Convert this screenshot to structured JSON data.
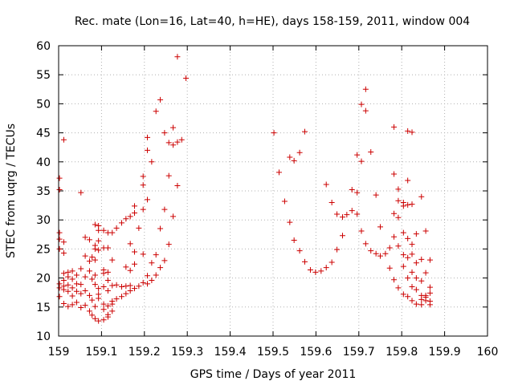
{
  "chart_data": {
    "type": "scatter",
    "title": "Rec. mate (Lon=16, Lat=40, h=HE), days 158-159, 2011, window 004",
    "xlabel": "GPS time / Days of year 2011",
    "ylabel": "STEC from uqrg / TECUs",
    "xlim": [
      159,
      160
    ],
    "ylim": [
      10,
      60
    ],
    "xticks": [
      159,
      159.1,
      159.2,
      159.3,
      159.4,
      159.5,
      159.6,
      159.7,
      159.8,
      159.9,
      160
    ],
    "xtick_labels": [
      "159",
      "159.1",
      "159.2",
      "159.3",
      "159.4",
      "159.5",
      "159.6",
      "159.7",
      "159.8",
      "159.9",
      "160"
    ],
    "yticks": [
      10,
      15,
      20,
      25,
      30,
      35,
      40,
      45,
      50,
      55,
      60
    ],
    "ytick_labels": [
      "10",
      "15",
      "20",
      "25",
      "30",
      "35",
      "40",
      "45",
      "50",
      "55",
      "60"
    ],
    "grid": true,
    "marker": "+",
    "color": "#cc0000",
    "points": [
      [
        159.002,
        37.2
      ],
      [
        159.002,
        35.2
      ],
      [
        159.002,
        27.8
      ],
      [
        159.002,
        26.7
      ],
      [
        159.002,
        25.0
      ],
      [
        159.002,
        19.0
      ],
      [
        159.002,
        18.3
      ],
      [
        159.002,
        16.8
      ],
      [
        159.012,
        43.8
      ],
      [
        159.012,
        26.2
      ],
      [
        159.012,
        24.3
      ],
      [
        159.012,
        20.8
      ],
      [
        159.012,
        19.6
      ],
      [
        159.012,
        18.6
      ],
      [
        159.012,
        18.0
      ],
      [
        159.012,
        15.6
      ],
      [
        159.022,
        21.0
      ],
      [
        159.022,
        20.2
      ],
      [
        159.022,
        18.8
      ],
      [
        159.022,
        17.7
      ],
      [
        159.022,
        15.1
      ],
      [
        159.032,
        21.2
      ],
      [
        159.032,
        19.8
      ],
      [
        159.032,
        18.3
      ],
      [
        159.032,
        16.9
      ],
      [
        159.032,
        15.4
      ],
      [
        159.042,
        20.5
      ],
      [
        159.042,
        19.0
      ],
      [
        159.042,
        17.7
      ],
      [
        159.042,
        15.8
      ],
      [
        159.052,
        34.7
      ],
      [
        159.052,
        21.6
      ],
      [
        159.052,
        18.9
      ],
      [
        159.052,
        17.3
      ],
      [
        159.052,
        14.9
      ],
      [
        159.062,
        27.0
      ],
      [
        159.062,
        23.8
      ],
      [
        159.062,
        20.2
      ],
      [
        159.062,
        17.8
      ],
      [
        159.062,
        15.3
      ],
      [
        159.072,
        26.6
      ],
      [
        159.072,
        22.9
      ],
      [
        159.072,
        21.2
      ],
      [
        159.072,
        17.0
      ],
      [
        159.072,
        14.3
      ],
      [
        159.078,
        23.6
      ],
      [
        159.078,
        19.8
      ],
      [
        159.078,
        16.2
      ],
      [
        159.078,
        13.6
      ],
      [
        159.085,
        29.2
      ],
      [
        159.085,
        25.6
      ],
      [
        159.085,
        25.0
      ],
      [
        159.085,
        23.1
      ],
      [
        159.085,
        20.5
      ],
      [
        159.085,
        18.9
      ],
      [
        159.085,
        15.1
      ],
      [
        159.085,
        13.0
      ],
      [
        159.093,
        29.0
      ],
      [
        159.093,
        28.2
      ],
      [
        159.093,
        26.4
      ],
      [
        159.093,
        24.8
      ],
      [
        159.093,
        18.2
      ],
      [
        159.093,
        17.2
      ],
      [
        159.093,
        16.5
      ],
      [
        159.093,
        12.6
      ],
      [
        159.105,
        28.2
      ],
      [
        159.105,
        25.2
      ],
      [
        159.105,
        21.4
      ],
      [
        159.105,
        20.8
      ],
      [
        159.105,
        18.5
      ],
      [
        159.105,
        15.5
      ],
      [
        159.105,
        14.6
      ],
      [
        159.105,
        12.8
      ],
      [
        159.115,
        27.8
      ],
      [
        159.115,
        25.2
      ],
      [
        159.115,
        21.0
      ],
      [
        159.115,
        19.6
      ],
      [
        159.115,
        17.8
      ],
      [
        159.115,
        15.2
      ],
      [
        159.115,
        13.7
      ],
      [
        159.115,
        13.3
      ],
      [
        159.125,
        27.8
      ],
      [
        159.125,
        23.1
      ],
      [
        159.125,
        18.7
      ],
      [
        159.125,
        16.0
      ],
      [
        159.125,
        15.5
      ],
      [
        159.125,
        14.3
      ],
      [
        159.135,
        28.6
      ],
      [
        159.135,
        18.8
      ],
      [
        159.135,
        16.4
      ],
      [
        159.147,
        29.5
      ],
      [
        159.147,
        18.5
      ],
      [
        159.147,
        16.8
      ],
      [
        159.157,
        30.2
      ],
      [
        159.157,
        21.9
      ],
      [
        159.157,
        18.6
      ],
      [
        159.157,
        17.3
      ],
      [
        159.167,
        30.6
      ],
      [
        159.167,
        25.9
      ],
      [
        159.167,
        21.3
      ],
      [
        159.167,
        18.7
      ],
      [
        159.167,
        17.8
      ],
      [
        159.177,
        32.4
      ],
      [
        159.177,
        31.2
      ],
      [
        159.177,
        24.5
      ],
      [
        159.177,
        22.4
      ],
      [
        159.177,
        18.2
      ],
      [
        159.187,
        28.6
      ],
      [
        159.187,
        18.6
      ],
      [
        159.197,
        37.5
      ],
      [
        159.197,
        36.0
      ],
      [
        159.197,
        31.8
      ],
      [
        159.197,
        24.1
      ],
      [
        159.197,
        19.2
      ],
      [
        159.207,
        44.2
      ],
      [
        159.207,
        42.0
      ],
      [
        159.207,
        33.5
      ],
      [
        159.207,
        20.4
      ],
      [
        159.207,
        19.0
      ],
      [
        159.217,
        40.0
      ],
      [
        159.217,
        22.6
      ],
      [
        159.217,
        19.6
      ],
      [
        159.227,
        48.7
      ],
      [
        159.227,
        24.0
      ],
      [
        159.227,
        20.5
      ],
      [
        159.237,
        50.7
      ],
      [
        159.237,
        28.5
      ],
      [
        159.237,
        21.8
      ],
      [
        159.247,
        45.0
      ],
      [
        159.247,
        31.8
      ],
      [
        159.247,
        23.0
      ],
      [
        159.257,
        43.3
      ],
      [
        159.257,
        37.6
      ],
      [
        159.257,
        25.8
      ],
      [
        159.267,
        45.9
      ],
      [
        159.267,
        42.9
      ],
      [
        159.267,
        30.6
      ],
      [
        159.277,
        58.1
      ],
      [
        159.277,
        43.4
      ],
      [
        159.277,
        35.9
      ],
      [
        159.287,
        43.8
      ],
      [
        159.297,
        54.4
      ],
      [
        159.502,
        45.0
      ],
      [
        159.514,
        38.2
      ],
      [
        159.527,
        33.2
      ],
      [
        159.539,
        40.8
      ],
      [
        159.539,
        29.6
      ],
      [
        159.549,
        40.2
      ],
      [
        159.549,
        26.5
      ],
      [
        159.562,
        41.6
      ],
      [
        159.562,
        24.7
      ],
      [
        159.574,
        45.2
      ],
      [
        159.574,
        22.8
      ],
      [
        159.587,
        21.4
      ],
      [
        159.599,
        21.0
      ],
      [
        159.612,
        21.2
      ],
      [
        159.624,
        36.1
      ],
      [
        159.624,
        21.8
      ],
      [
        159.637,
        33.0
      ],
      [
        159.637,
        22.7
      ],
      [
        159.649,
        31.0
      ],
      [
        159.649,
        24.9
      ],
      [
        159.662,
        30.5
      ],
      [
        159.662,
        27.3
      ],
      [
        159.672,
        30.9
      ],
      [
        159.684,
        35.2
      ],
      [
        159.684,
        31.6
      ],
      [
        159.696,
        41.2
      ],
      [
        159.696,
        34.7
      ],
      [
        159.696,
        31.0
      ],
      [
        159.706,
        49.9
      ],
      [
        159.706,
        40.1
      ],
      [
        159.706,
        28.1
      ],
      [
        159.716,
        52.5
      ],
      [
        159.716,
        48.8
      ],
      [
        159.716,
        25.9
      ],
      [
        159.728,
        41.7
      ],
      [
        159.728,
        24.7
      ],
      [
        159.74,
        34.3
      ],
      [
        159.74,
        24.2
      ],
      [
        159.75,
        28.8
      ],
      [
        159.75,
        23.8
      ],
      [
        159.762,
        24.2
      ],
      [
        159.772,
        25.2
      ],
      [
        159.772,
        21.7
      ],
      [
        159.782,
        46.0
      ],
      [
        159.782,
        37.9
      ],
      [
        159.782,
        31.1
      ],
      [
        159.782,
        27.1
      ],
      [
        159.782,
        19.7
      ],
      [
        159.792,
        35.3
      ],
      [
        159.792,
        33.3
      ],
      [
        159.792,
        30.4
      ],
      [
        159.792,
        25.5
      ],
      [
        159.792,
        18.3
      ],
      [
        159.804,
        33.0
      ],
      [
        159.804,
        32.4
      ],
      [
        159.804,
        27.8
      ],
      [
        159.804,
        24.0
      ],
      [
        159.804,
        22.0
      ],
      [
        159.804,
        17.2
      ],
      [
        159.814,
        45.3
      ],
      [
        159.814,
        36.8
      ],
      [
        159.814,
        32.6
      ],
      [
        159.814,
        26.8
      ],
      [
        159.814,
        23.5
      ],
      [
        159.814,
        20.0
      ],
      [
        159.814,
        16.8
      ],
      [
        159.824,
        45.1
      ],
      [
        159.824,
        32.7
      ],
      [
        159.824,
        25.8
      ],
      [
        159.824,
        24.1
      ],
      [
        159.824,
        21.0
      ],
      [
        159.824,
        18.5
      ],
      [
        159.824,
        16.1
      ],
      [
        159.834,
        27.6
      ],
      [
        159.834,
        22.6
      ],
      [
        159.834,
        20.0
      ],
      [
        159.834,
        18.0
      ],
      [
        159.834,
        15.5
      ],
      [
        159.846,
        34.0
      ],
      [
        159.846,
        23.2
      ],
      [
        159.846,
        19.5
      ],
      [
        159.846,
        17.0
      ],
      [
        159.846,
        16.3
      ],
      [
        159.846,
        15.4
      ],
      [
        159.856,
        28.1
      ],
      [
        159.856,
        20.9
      ],
      [
        159.856,
        17.0
      ],
      [
        159.856,
        16.7
      ],
      [
        159.856,
        16.1
      ],
      [
        159.866,
        23.1
      ],
      [
        159.866,
        18.4
      ],
      [
        159.866,
        17.4
      ],
      [
        159.866,
        16.0
      ],
      [
        159.866,
        15.4
      ]
    ]
  }
}
